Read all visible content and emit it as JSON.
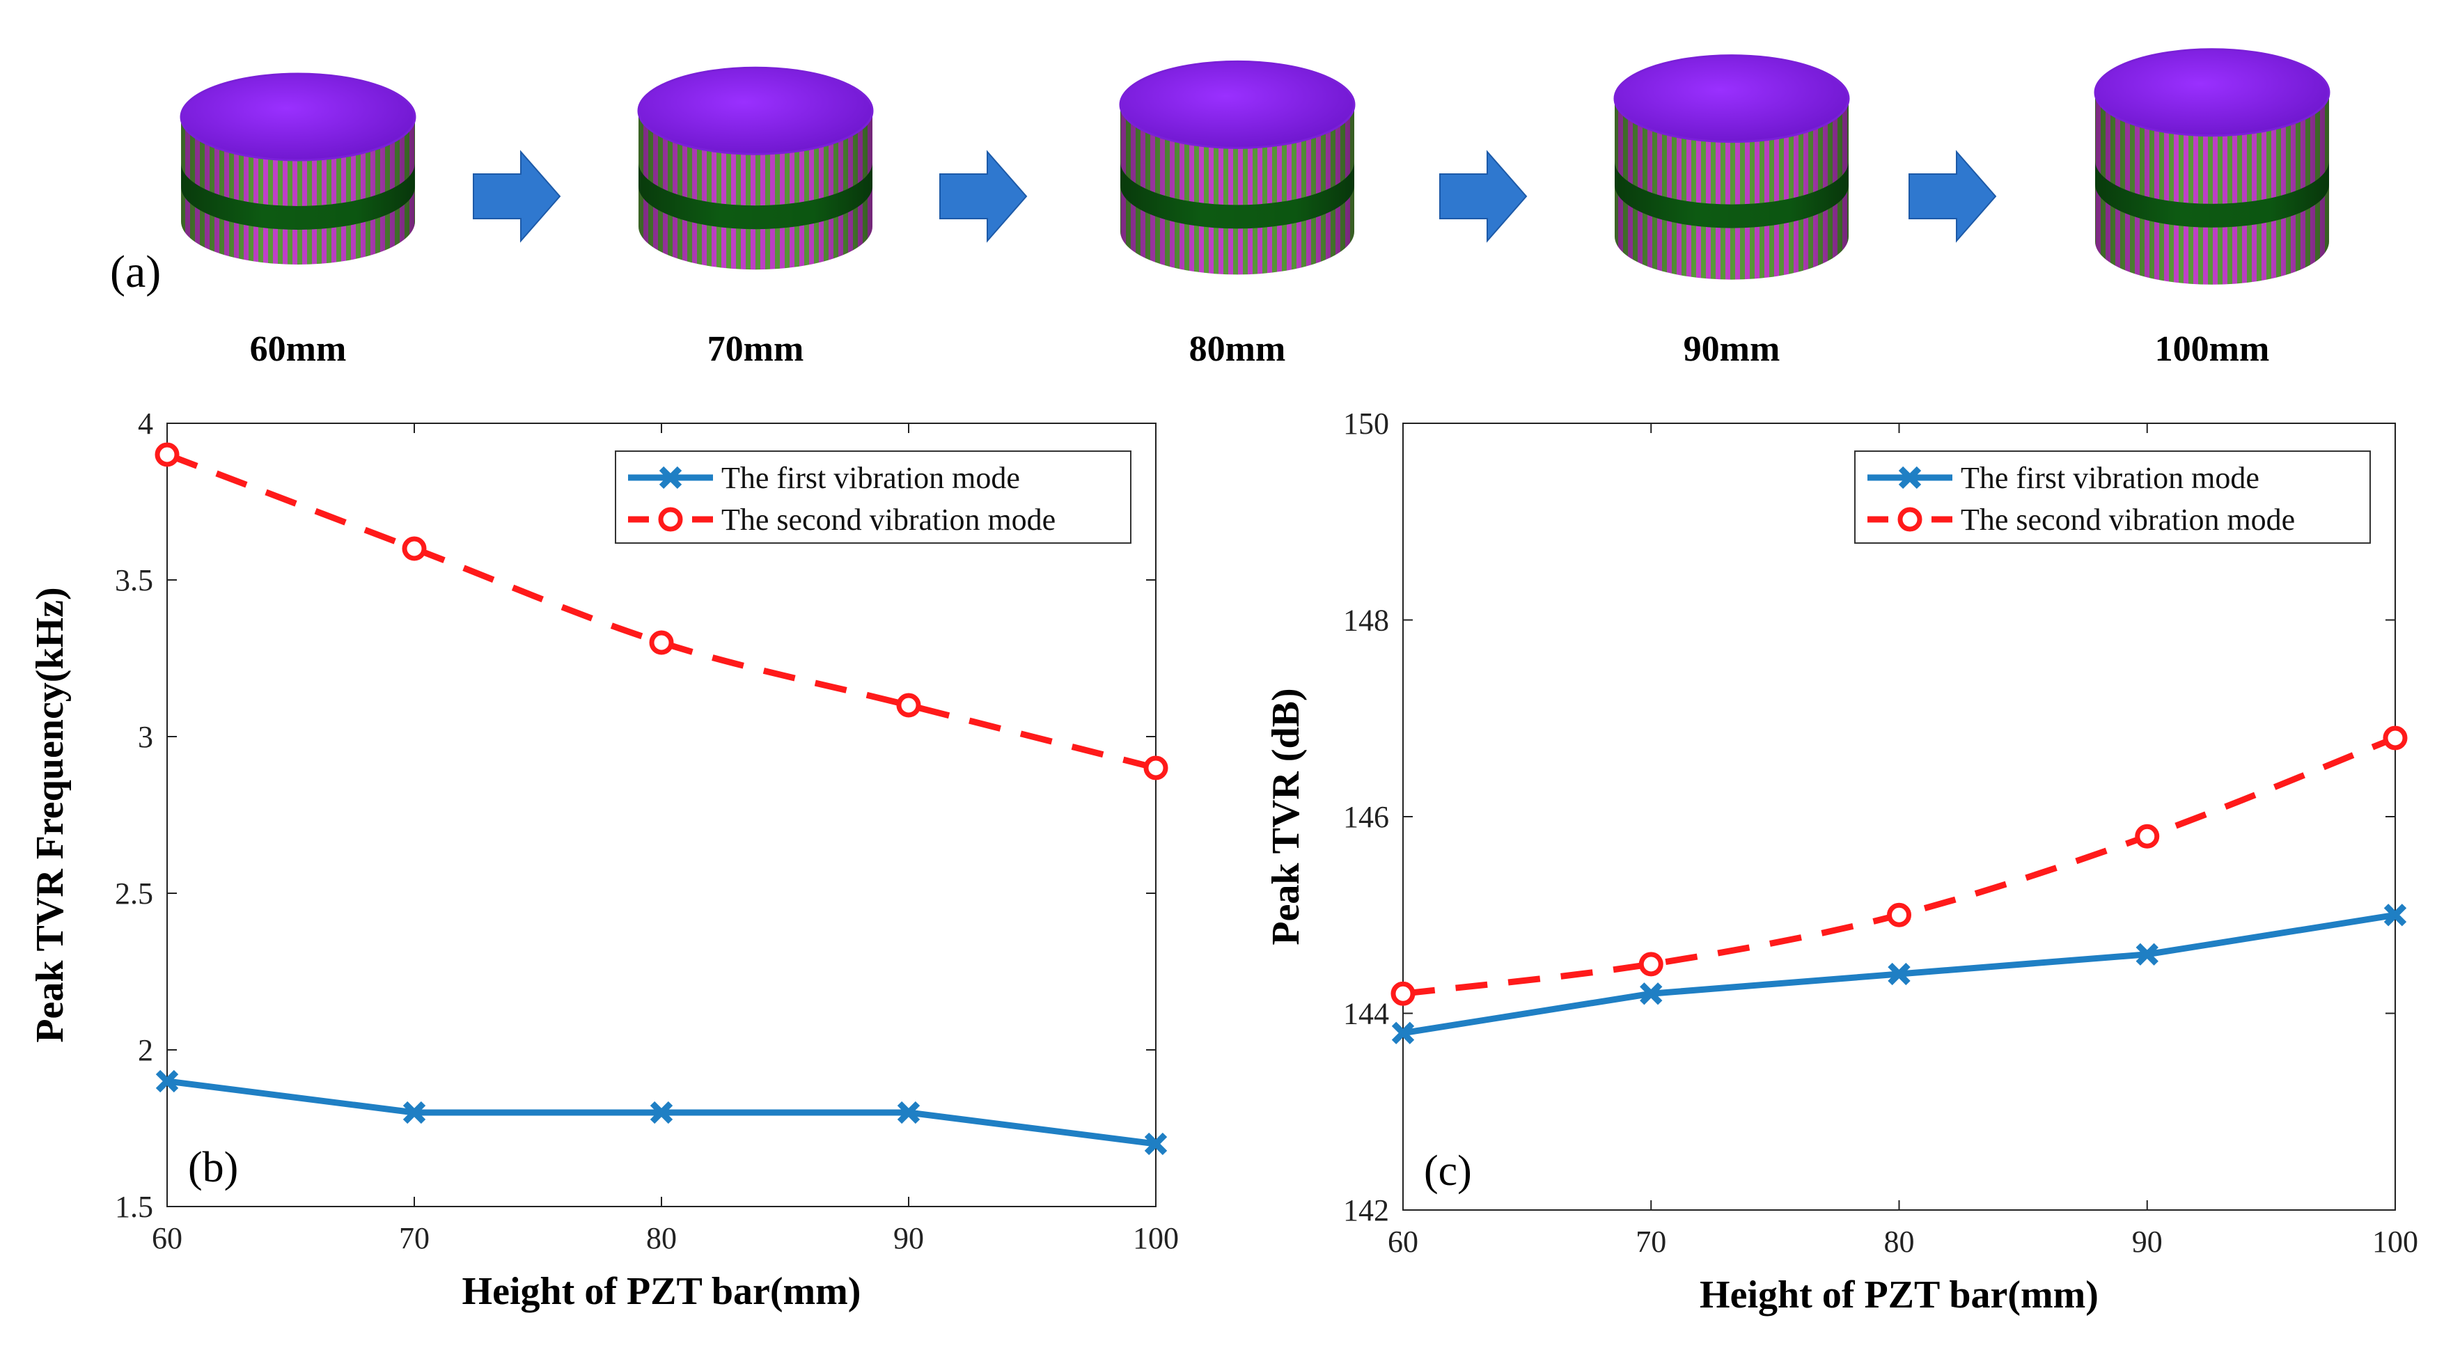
{
  "panel_a": {
    "label": "(a)",
    "items": [
      {
        "label": "60mm",
        "height_mm": 60
      },
      {
        "label": "70mm",
        "height_mm": 70
      },
      {
        "label": "80mm",
        "height_mm": 80
      },
      {
        "label": "90mm",
        "height_mm": 90
      },
      {
        "label": "100mm",
        "height_mm": 100
      }
    ],
    "colors": {
      "top": "#9a30ff",
      "top_dark": "#6a14c8",
      "stripe_a": "#c040c8",
      "stripe_b": "#5a9a3a",
      "band": "#0d5a12",
      "arrow": "#2f78cf"
    }
  },
  "chart_data": [
    {
      "panel_label": "(b)",
      "type": "line",
      "title": "",
      "xlabel": "Height of  PZT bar(mm)",
      "ylabel": "Peak TVR Frequency(kHz)",
      "xlim": [
        60,
        100
      ],
      "ylim": [
        1.5,
        4
      ],
      "xticks": [
        60,
        70,
        80,
        90,
        100
      ],
      "xtick_labels": [
        "60",
        "70",
        "80",
        "90",
        "100"
      ],
      "yticks": [
        1.5,
        2,
        2.5,
        3,
        3.5,
        4
      ],
      "ytick_labels": [
        "1.5",
        "2",
        "2.5",
        "3",
        "3.5",
        "4"
      ],
      "grid": false,
      "legend_position": "top-right",
      "x": [
        60,
        70,
        80,
        90,
        100
      ],
      "series": [
        {
          "name": "The first vibration mode",
          "values": [
            1.9,
            1.8,
            1.8,
            1.8,
            1.7
          ],
          "color": "#1f7fc4",
          "style": "solid",
          "marker": "x"
        },
        {
          "name": "The second vibration mode",
          "values": [
            3.9,
            3.6,
            3.3,
            3.1,
            2.9
          ],
          "color": "#ff1a1a",
          "style": "dashed",
          "marker": "o"
        }
      ]
    },
    {
      "panel_label": "(c)",
      "type": "line",
      "title": "",
      "xlabel": "Height of  PZT bar(mm)",
      "ylabel": "Peak TVR (dB)",
      "xlim": [
        60,
        100
      ],
      "ylim": [
        142,
        150
      ],
      "xticks": [
        60,
        70,
        80,
        90,
        100
      ],
      "xtick_labels": [
        "60",
        "70",
        "80",
        "90",
        "100"
      ],
      "yticks": [
        142,
        144,
        146,
        148,
        150
      ],
      "ytick_labels": [
        "142",
        "144",
        "146",
        "148",
        "150"
      ],
      "grid": false,
      "legend_position": "top-right",
      "x": [
        60,
        70,
        80,
        90,
        100
      ],
      "series": [
        {
          "name": "The first vibration mode",
          "values": [
            143.8,
            144.2,
            144.4,
            144.6,
            145.0
          ],
          "color": "#1f7fc4",
          "style": "solid",
          "marker": "x"
        },
        {
          "name": "The second vibration mode",
          "values": [
            144.2,
            144.5,
            145.0,
            145.8,
            146.8
          ],
          "color": "#ff1a1a",
          "style": "dashed",
          "marker": "o"
        }
      ]
    }
  ]
}
